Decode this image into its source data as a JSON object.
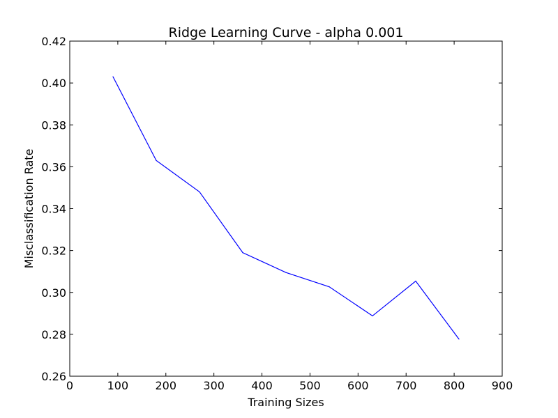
{
  "chart_data": {
    "type": "line",
    "title": "Ridge Learning Curve - alpha 0.001",
    "xlabel": "Training Sizes",
    "ylabel": "Misclassification Rate",
    "xlim": [
      0,
      900
    ],
    "ylim": [
      0.26,
      0.42
    ],
    "xticks": [
      0,
      100,
      200,
      300,
      400,
      500,
      600,
      700,
      800,
      900
    ],
    "yticks": [
      0.26,
      0.28,
      0.3,
      0.32,
      0.34,
      0.36,
      0.38,
      0.4,
      0.42
    ],
    "xtick_labels": [
      "0",
      "100",
      "200",
      "300",
      "400",
      "500",
      "600",
      "700",
      "800",
      "900"
    ],
    "ytick_labels": [
      "0.26",
      "0.28",
      "0.30",
      "0.32",
      "0.34",
      "0.36",
      "0.38",
      "0.40",
      "0.42"
    ],
    "grid": false,
    "series": [
      {
        "color": "#0000ff",
        "x": [
          90,
          180,
          270,
          360,
          450,
          540,
          630,
          720,
          810
        ],
        "y": [
          0.403,
          0.363,
          0.348,
          0.319,
          0.3095,
          0.3027,
          0.2888,
          0.3054,
          0.2777
        ]
      }
    ]
  }
}
